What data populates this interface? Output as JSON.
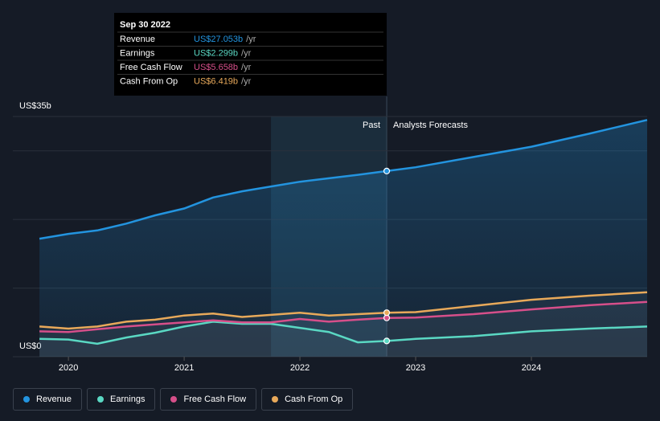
{
  "chart_data": {
    "type": "line",
    "x": [
      2019.75,
      2020.0,
      2020.25,
      2020.5,
      2020.75,
      2021.0,
      2021.25,
      2021.5,
      2021.75,
      2022.0,
      2022.25,
      2022.5,
      2022.75,
      2023.0,
      2023.5,
      2024.0,
      2024.5,
      2025.0
    ],
    "series": [
      {
        "name": "Revenue",
        "color": "#2394df",
        "values": [
          17.2,
          17.9,
          18.4,
          19.4,
          20.6,
          21.6,
          23.2,
          24.1,
          24.8,
          25.5,
          26.0,
          26.5,
          27.053,
          27.6,
          29.1,
          30.6,
          32.5,
          34.5
        ]
      },
      {
        "name": "Earnings",
        "color": "#5ad8c3",
        "values": [
          2.6,
          2.5,
          1.9,
          2.8,
          3.5,
          4.4,
          5.1,
          4.8,
          4.8,
          4.2,
          3.6,
          2.1,
          2.299,
          2.6,
          3.0,
          3.7,
          4.1,
          4.4
        ]
      },
      {
        "name": "Free Cash Flow",
        "color": "#d64f8a",
        "values": [
          3.7,
          3.6,
          4.0,
          4.4,
          4.7,
          5.0,
          5.3,
          5.0,
          5.0,
          5.5,
          5.1,
          5.4,
          5.658,
          5.7,
          6.2,
          6.9,
          7.5,
          8.0
        ]
      },
      {
        "name": "Cash From Op",
        "color": "#e8a95a",
        "values": [
          4.4,
          4.1,
          4.4,
          5.1,
          5.4,
          6.0,
          6.3,
          5.8,
          6.1,
          6.4,
          6.0,
          6.2,
          6.419,
          6.5,
          7.4,
          8.3,
          8.9,
          9.4
        ]
      }
    ],
    "xlim": [
      2019.52,
      2025.0
    ],
    "xticks": [
      2020,
      2021,
      2022,
      2023,
      2024
    ],
    "ylim": [
      0,
      35
    ],
    "yticks": [
      {
        "value": 0,
        "label": "US$0"
      },
      {
        "value": 10,
        "label": null
      },
      {
        "value": 20,
        "label": null
      },
      {
        "value": 30,
        "label": null
      },
      {
        "value": 35,
        "label": "US$35b"
      }
    ],
    "grid": true,
    "past_label": "Past",
    "forecast_label": "Analysts Forecasts",
    "past_end": 2022.75,
    "highlight_start": 2021.75,
    "tooltip": {
      "date": "Sep 30 2022",
      "items": [
        {
          "label": "US$27.053b",
          "unit": "/yr"
        },
        {
          "label": "US$2.299b",
          "unit": "/yr"
        },
        {
          "label": "US$5.658b",
          "unit": "/yr"
        },
        {
          "label": "US$6.419b",
          "unit": "/yr"
        }
      ]
    }
  }
}
